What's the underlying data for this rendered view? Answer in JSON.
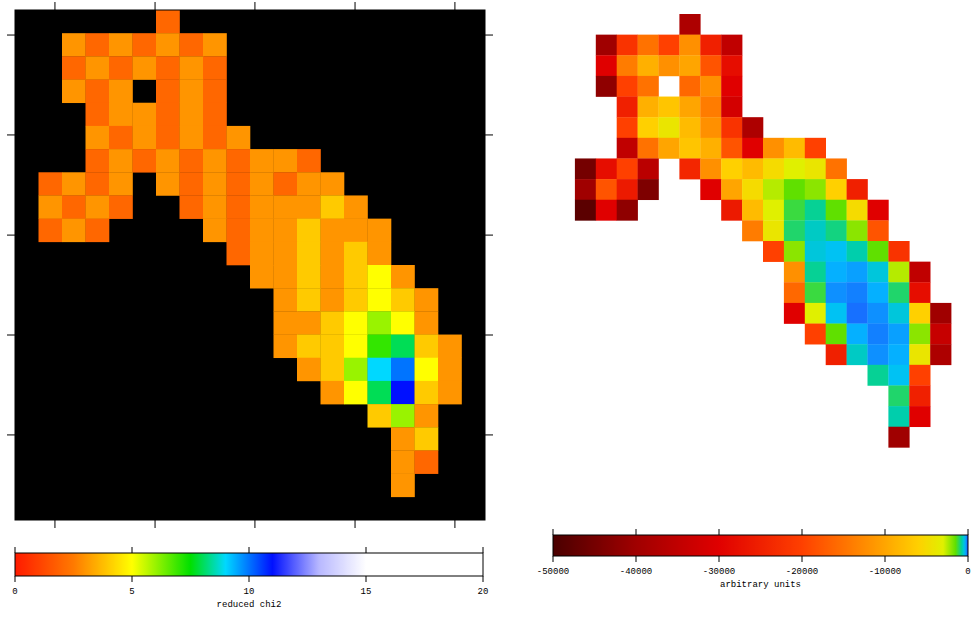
{
  "chart_data": [
    {
      "type": "heatmap",
      "xlim": [
        0,
        20
      ],
      "ylim": [
        0,
        22
      ],
      "xticks": [
        1.7,
        5.96,
        10.21,
        14.47,
        18.72
      ],
      "yticks": [
        1.08,
        5.39,
        9.71,
        14.02,
        18.33
      ],
      "tick_labels": false,
      "colorbar": {
        "range": [
          0,
          20
        ],
        "ticks": [
          0,
          5,
          10,
          15,
          20
        ],
        "label": "reduced chi2"
      },
      "cells": [
        [
          null,
          null,
          null,
          null,
          null,
          null,
          2,
          null,
          null,
          null,
          null,
          null,
          null,
          null,
          null,
          null,
          null,
          null,
          null,
          null
        ],
        [
          null,
          null,
          3,
          2,
          3,
          2,
          3,
          2,
          3,
          null,
          null,
          null,
          null,
          null,
          null,
          null,
          null,
          null,
          null,
          null
        ],
        [
          null,
          null,
          2,
          3,
          2,
          3,
          2,
          3,
          2,
          null,
          null,
          null,
          null,
          null,
          null,
          null,
          null,
          null,
          null,
          null
        ],
        [
          null,
          null,
          3,
          2,
          3,
          null,
          2,
          3,
          2,
          null,
          null,
          null,
          null,
          null,
          null,
          null,
          null,
          null,
          null,
          null
        ],
        [
          null,
          null,
          null,
          2,
          3,
          3,
          2,
          3,
          2,
          null,
          null,
          null,
          null,
          null,
          null,
          null,
          null,
          null,
          null,
          null
        ],
        [
          null,
          null,
          null,
          3,
          2,
          3,
          2,
          3,
          2,
          3,
          null,
          null,
          null,
          null,
          null,
          null,
          null,
          null,
          null,
          null
        ],
        [
          null,
          null,
          null,
          2,
          3,
          2,
          3,
          2,
          3,
          2,
          3,
          3,
          2,
          null,
          null,
          null,
          null,
          null,
          null,
          null
        ],
        [
          null,
          2,
          3,
          2,
          3,
          null,
          3,
          2,
          3,
          2,
          3,
          2,
          3,
          3,
          null,
          null,
          null,
          null,
          null,
          null
        ],
        [
          null,
          3,
          2,
          3,
          2,
          null,
          null,
          2,
          3,
          2,
          3,
          3,
          3,
          4,
          3,
          null,
          null,
          null,
          null,
          null
        ],
        [
          null,
          2,
          3,
          2,
          null,
          null,
          null,
          null,
          3,
          2,
          3,
          3,
          4,
          3,
          3,
          3,
          null,
          null,
          null,
          null
        ],
        [
          null,
          null,
          null,
          null,
          null,
          null,
          null,
          null,
          null,
          2,
          3,
          3,
          4,
          3,
          4,
          3,
          null,
          null,
          null,
          null
        ],
        [
          null,
          null,
          null,
          null,
          null,
          null,
          null,
          null,
          null,
          null,
          3,
          3,
          4,
          3,
          4,
          5,
          3,
          null,
          null,
          null
        ],
        [
          null,
          null,
          null,
          null,
          null,
          null,
          null,
          null,
          null,
          null,
          null,
          3,
          4,
          3,
          4,
          5,
          4,
          3,
          null,
          null
        ],
        [
          null,
          null,
          null,
          null,
          null,
          null,
          null,
          null,
          null,
          null,
          null,
          3,
          3,
          4,
          5,
          6,
          5,
          3,
          null,
          null
        ],
        [
          null,
          null,
          null,
          null,
          null,
          null,
          null,
          null,
          null,
          null,
          null,
          3,
          4,
          4,
          5,
          7,
          8,
          4,
          3,
          null
        ],
        [
          null,
          null,
          null,
          null,
          null,
          null,
          null,
          null,
          null,
          null,
          null,
          null,
          3,
          4,
          6,
          9,
          10,
          5,
          3,
          null
        ],
        [
          null,
          null,
          null,
          null,
          null,
          null,
          null,
          null,
          null,
          null,
          null,
          null,
          null,
          3,
          5,
          8,
          11,
          4,
          3,
          null
        ],
        [
          null,
          null,
          null,
          null,
          null,
          null,
          null,
          null,
          null,
          null,
          null,
          null,
          null,
          null,
          null,
          4,
          6,
          3,
          null,
          null
        ],
        [
          null,
          null,
          null,
          null,
          null,
          null,
          null,
          null,
          null,
          null,
          null,
          null,
          null,
          null,
          null,
          null,
          3,
          4,
          null,
          null
        ],
        [
          null,
          null,
          null,
          null,
          null,
          null,
          null,
          null,
          null,
          null,
          null,
          null,
          null,
          null,
          null,
          null,
          3,
          2,
          null,
          null
        ],
        [
          null,
          null,
          null,
          null,
          null,
          null,
          null,
          null,
          null,
          null,
          null,
          null,
          null,
          null,
          null,
          null,
          3,
          null,
          null,
          null
        ],
        [
          null,
          null,
          null,
          null,
          null,
          null,
          null,
          null,
          null,
          null,
          null,
          null,
          null,
          null,
          null,
          null,
          null,
          null,
          null,
          null
        ]
      ]
    },
    {
      "type": "heatmap",
      "xlim": [
        0,
        20
      ],
      "ylim": [
        0,
        22
      ],
      "tick_labels": false,
      "colorbar": {
        "range": [
          -50000,
          0
        ],
        "ticks": [
          -50000,
          -40000,
          -30000,
          -20000,
          -10000,
          0
        ],
        "label": "arbitrary units"
      },
      "cells": [
        [
          null,
          null,
          null,
          null,
          null,
          null,
          -38000,
          null,
          null,
          null,
          null,
          null,
          null,
          null,
          null,
          null,
          null,
          null,
          null,
          null
        ],
        [
          null,
          null,
          -40000,
          -22000,
          -15000,
          -20000,
          -12000,
          -25000,
          -35000,
          null,
          null,
          null,
          null,
          null,
          null,
          null,
          null,
          null,
          null,
          null
        ],
        [
          null,
          null,
          -30000,
          -14000,
          -9000,
          -12000,
          -10000,
          -18000,
          -28000,
          null,
          null,
          null,
          null,
          null,
          null,
          null,
          null,
          null,
          null,
          null
        ],
        [
          null,
          null,
          -42000,
          -20000,
          -15000,
          null,
          -16000,
          -12000,
          -30000,
          null,
          null,
          null,
          null,
          null,
          null,
          null,
          null,
          null,
          null,
          null
        ],
        [
          null,
          null,
          null,
          -25000,
          -9000,
          -7000,
          -10000,
          -14000,
          -32000,
          null,
          null,
          null,
          null,
          null,
          null,
          null,
          null,
          null,
          null,
          null
        ],
        [
          null,
          null,
          null,
          -20000,
          -6000,
          -4000,
          -8000,
          -12000,
          -22000,
          -38000,
          null,
          null,
          null,
          null,
          null,
          null,
          null,
          null,
          null,
          null
        ],
        [
          null,
          null,
          null,
          -35000,
          -15000,
          -10000,
          -7000,
          -9000,
          -18000,
          -30000,
          -12000,
          -8000,
          -20000,
          null,
          null,
          null,
          null,
          null,
          null,
          null
        ],
        [
          null,
          -45000,
          -28000,
          -20000,
          -36000,
          null,
          -24000,
          -12000,
          -6000,
          -8000,
          -5000,
          -3000,
          -4000,
          -15000,
          null,
          null,
          null,
          null,
          null,
          null
        ],
        [
          null,
          -40000,
          -18000,
          -26000,
          -44000,
          null,
          null,
          -30000,
          -10000,
          -5000,
          -2500,
          -1500,
          -2000,
          -6000,
          -25000,
          null,
          null,
          null,
          null,
          null
        ],
        [
          null,
          -48000,
          -30000,
          -42000,
          null,
          null,
          null,
          null,
          -26000,
          -8000,
          -3000,
          -1200,
          -800,
          -1500,
          -5000,
          -30000,
          null,
          null,
          null,
          null
        ],
        [
          null,
          null,
          null,
          null,
          null,
          null,
          null,
          null,
          null,
          -14000,
          -4000,
          -1000,
          -600,
          -900,
          -2000,
          -18000,
          null,
          null,
          null,
          null
        ],
        [
          null,
          null,
          null,
          null,
          null,
          null,
          null,
          null,
          null,
          null,
          -20000,
          -2000,
          -500,
          -400,
          -700,
          -1500,
          -22000,
          null,
          null,
          null
        ],
        [
          null,
          null,
          null,
          null,
          null,
          null,
          null,
          null,
          null,
          null,
          null,
          -12000,
          -800,
          -300,
          -250,
          -500,
          -2500,
          -35000,
          null,
          null
        ],
        [
          null,
          null,
          null,
          null,
          null,
          null,
          null,
          null,
          null,
          null,
          null,
          -16000,
          -1200,
          -200,
          -150,
          -300,
          -1000,
          -28000,
          null,
          null
        ],
        [
          null,
          null,
          null,
          null,
          null,
          null,
          null,
          null,
          null,
          null,
          null,
          -30000,
          -3000,
          -400,
          -100,
          -200,
          -500,
          -6000,
          -40000,
          null
        ],
        [
          null,
          null,
          null,
          null,
          null,
          null,
          null,
          null,
          null,
          null,
          null,
          null,
          -20000,
          -1500,
          -300,
          -150,
          -250,
          -2000,
          -34000,
          null
        ],
        [
          null,
          null,
          null,
          null,
          null,
          null,
          null,
          null,
          null,
          null,
          null,
          null,
          null,
          -25000,
          -600,
          -200,
          -300,
          -4000,
          -38000,
          null
        ],
        [
          null,
          null,
          null,
          null,
          null,
          null,
          null,
          null,
          null,
          null,
          null,
          null,
          null,
          null,
          null,
          -800,
          -400,
          -20000,
          null,
          null
        ],
        [
          null,
          null,
          null,
          null,
          null,
          null,
          null,
          null,
          null,
          null,
          null,
          null,
          null,
          null,
          null,
          null,
          -1000,
          -25000,
          null,
          null
        ],
        [
          null,
          null,
          null,
          null,
          null,
          null,
          null,
          null,
          null,
          null,
          null,
          null,
          null,
          null,
          null,
          null,
          -700,
          -30000,
          null,
          null
        ],
        [
          null,
          null,
          null,
          null,
          null,
          null,
          null,
          null,
          null,
          null,
          null,
          null,
          null,
          null,
          null,
          null,
          -40000,
          null,
          null,
          null
        ],
        [
          null,
          null,
          null,
          null,
          null,
          null,
          null,
          null,
          null,
          null,
          null,
          null,
          null,
          null,
          null,
          null,
          null,
          null,
          null,
          null
        ]
      ]
    }
  ]
}
